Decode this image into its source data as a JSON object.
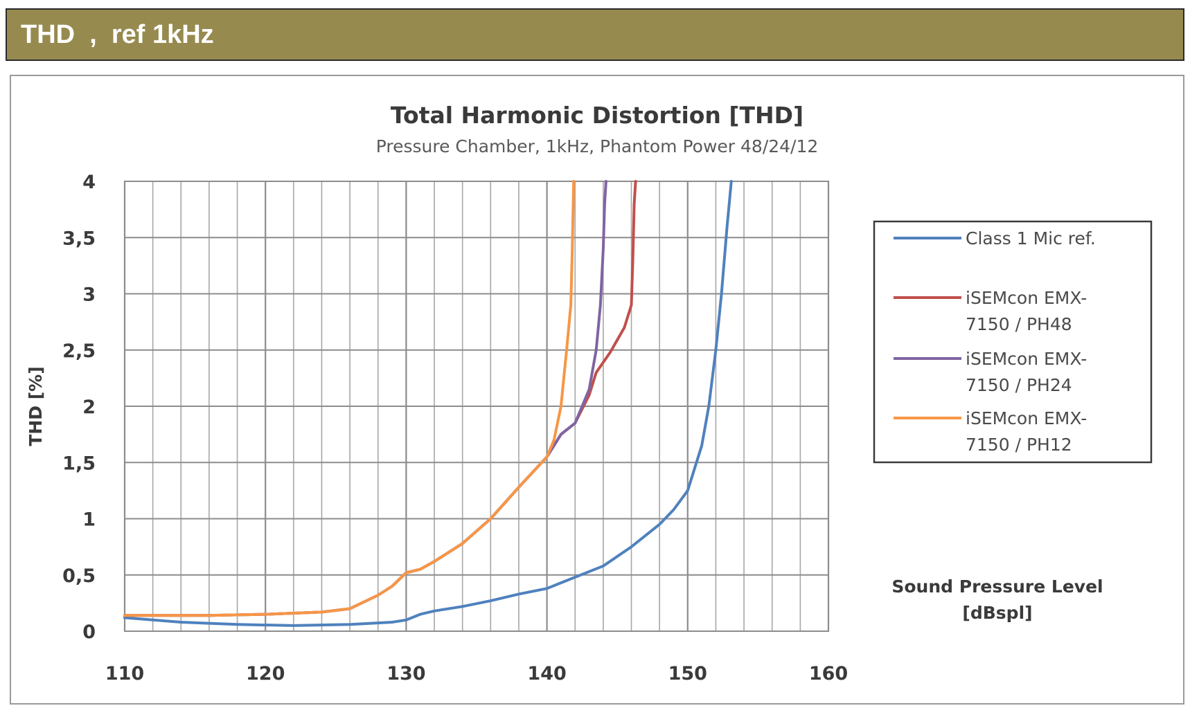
{
  "banner": {
    "title": "THD  ,  ref 1kHz"
  },
  "chart_data": {
    "type": "line",
    "title": "Total Harmonic Distortion [THD]",
    "subtitle": "Pressure Chamber, 1kHz, Phantom Power 48/24/12",
    "xlabel": "Sound Pressure Level [dBspl]",
    "xlabel_lines": [
      "Sound Pressure Level",
      "[dBspl]"
    ],
    "ylabel": "THD [%]",
    "xlim": [
      110,
      160
    ],
    "ylim": [
      0,
      4
    ],
    "x_ticks": [
      "110",
      "120",
      "130",
      "140",
      "150",
      "160"
    ],
    "y_ticks": [
      "0",
      "0,5",
      "1",
      "1,5",
      "2",
      "2,5",
      "3",
      "3,5",
      "4"
    ],
    "grid": true,
    "legend_position": "right",
    "series": [
      {
        "name": "Class 1 Mic ref.",
        "name_lines": [
          "Class 1 Mic ref."
        ],
        "color": "#4f81bd",
        "points": [
          [
            110,
            0.12
          ],
          [
            114,
            0.08
          ],
          [
            118,
            0.06
          ],
          [
            122,
            0.05
          ],
          [
            126,
            0.06
          ],
          [
            129,
            0.08
          ],
          [
            130,
            0.1
          ],
          [
            131,
            0.15
          ],
          [
            132,
            0.18
          ],
          [
            134,
            0.22
          ],
          [
            136,
            0.27
          ],
          [
            138,
            0.33
          ],
          [
            140,
            0.38
          ],
          [
            141,
            0.43
          ],
          [
            142,
            0.48
          ],
          [
            144,
            0.58
          ],
          [
            146,
            0.75
          ],
          [
            148,
            0.95
          ],
          [
            149,
            1.08
          ],
          [
            150,
            1.25
          ],
          [
            151,
            1.65
          ],
          [
            151.5,
            2.0
          ],
          [
            152,
            2.5
          ],
          [
            152.4,
            3.0
          ],
          [
            152.8,
            3.6
          ],
          [
            153.1,
            4.0
          ]
        ]
      },
      {
        "name": "iSEMcon EMX-7150 / PH48",
        "name_lines": [
          "iSEMcon EMX-",
          "7150 / PH48"
        ],
        "color": "#c0504d",
        "points": [
          [
            110,
            0.14
          ],
          [
            116,
            0.14
          ],
          [
            120,
            0.15
          ],
          [
            124,
            0.17
          ],
          [
            126,
            0.2
          ],
          [
            128,
            0.32
          ],
          [
            129,
            0.4
          ],
          [
            130,
            0.52
          ],
          [
            131,
            0.55
          ],
          [
            132,
            0.62
          ],
          [
            134,
            0.78
          ],
          [
            136,
            1.0
          ],
          [
            138,
            1.28
          ],
          [
            140,
            1.55
          ],
          [
            141,
            1.75
          ],
          [
            142,
            1.85
          ],
          [
            143,
            2.1
          ],
          [
            143.5,
            2.3
          ],
          [
            144.5,
            2.48
          ],
          [
            145.5,
            2.7
          ],
          [
            146,
            2.9
          ],
          [
            146.1,
            3.3
          ],
          [
            146.2,
            3.8
          ],
          [
            146.3,
            4.0
          ]
        ]
      },
      {
        "name": "iSEMcon EMX-7150 / PH24",
        "name_lines": [
          "iSEMcon EMX-",
          "7150 / PH24"
        ],
        "color": "#8064a2",
        "points": [
          [
            110,
            0.14
          ],
          [
            116,
            0.14
          ],
          [
            120,
            0.15
          ],
          [
            124,
            0.17
          ],
          [
            126,
            0.2
          ],
          [
            128,
            0.32
          ],
          [
            129,
            0.4
          ],
          [
            130,
            0.52
          ],
          [
            131,
            0.55
          ],
          [
            132,
            0.62
          ],
          [
            134,
            0.78
          ],
          [
            136,
            1.0
          ],
          [
            138,
            1.28
          ],
          [
            140,
            1.55
          ],
          [
            141,
            1.75
          ],
          [
            142,
            1.85
          ],
          [
            143,
            2.15
          ],
          [
            143.5,
            2.5
          ],
          [
            143.8,
            2.9
          ],
          [
            144,
            3.4
          ],
          [
            144.1,
            3.8
          ],
          [
            144.2,
            4.0
          ]
        ]
      },
      {
        "name": "iSEMcon EMX-7150 / PH12",
        "name_lines": [
          "iSEMcon EMX-",
          "7150 / PH12"
        ],
        "color": "#f79646",
        "points": [
          [
            110,
            0.14
          ],
          [
            116,
            0.14
          ],
          [
            120,
            0.15
          ],
          [
            124,
            0.17
          ],
          [
            126,
            0.2
          ],
          [
            128,
            0.32
          ],
          [
            129,
            0.4
          ],
          [
            130,
            0.52
          ],
          [
            131,
            0.55
          ],
          [
            132,
            0.62
          ],
          [
            134,
            0.78
          ],
          [
            136,
            1.0
          ],
          [
            138,
            1.28
          ],
          [
            140,
            1.55
          ],
          [
            140.5,
            1.7
          ],
          [
            141,
            2.0
          ],
          [
            141.4,
            2.5
          ],
          [
            141.7,
            2.9
          ],
          [
            141.8,
            3.4
          ],
          [
            141.9,
            4.0
          ]
        ]
      }
    ]
  }
}
